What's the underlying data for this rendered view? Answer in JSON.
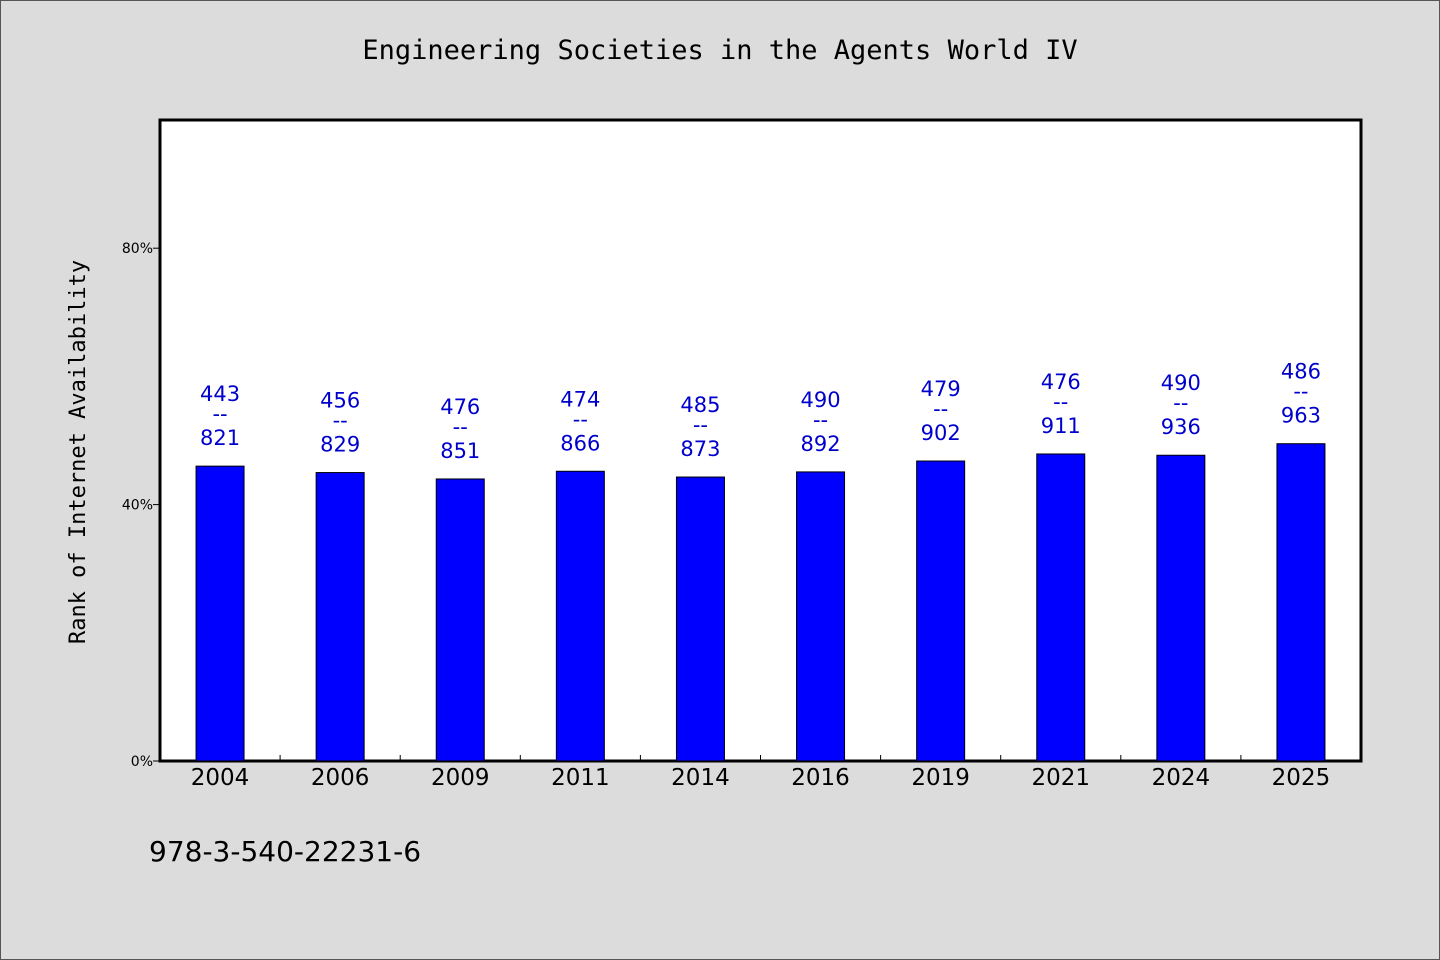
{
  "colors": {
    "background": "#dcdcdc",
    "plot_background": "#ffffff",
    "bar": "#0000ff",
    "value_label": "#0000cc",
    "text": "#000000"
  },
  "footer": {
    "isbn": "978-3-540-22231-6"
  },
  "chart_data": {
    "type": "bar",
    "title": "Engineering Societies in the Agents World IV",
    "xlabel": "",
    "ylabel": "Rank of Internet Availability",
    "ylim": [
      0,
      1
    ],
    "yticks": [
      {
        "value": 0,
        "label": "0%"
      },
      {
        "value": 0.4,
        "label": "40%"
      },
      {
        "value": 0.8,
        "label": "80%"
      }
    ],
    "grid": false,
    "legend": "none",
    "categories": [
      "2004",
      "2006",
      "2009",
      "2011",
      "2014",
      "2016",
      "2019",
      "2021",
      "2024",
      "2025"
    ],
    "values": [
      0.46,
      0.45,
      0.44,
      0.452,
      0.443,
      0.451,
      0.468,
      0.479,
      0.477,
      0.495
    ],
    "data_labels": [
      {
        "top": "443",
        "sep": "--",
        "bottom": "821"
      },
      {
        "top": "456",
        "sep": "--",
        "bottom": "829"
      },
      {
        "top": "476",
        "sep": "--",
        "bottom": "851"
      },
      {
        "top": "474",
        "sep": "--",
        "bottom": "866"
      },
      {
        "top": "485",
        "sep": "--",
        "bottom": "873"
      },
      {
        "top": "490",
        "sep": "--",
        "bottom": "892"
      },
      {
        "top": "479",
        "sep": "--",
        "bottom": "902"
      },
      {
        "top": "476",
        "sep": "--",
        "bottom": "911"
      },
      {
        "top": "490",
        "sep": "--",
        "bottom": "936"
      },
      {
        "top": "486",
        "sep": "--",
        "bottom": "963"
      }
    ]
  }
}
